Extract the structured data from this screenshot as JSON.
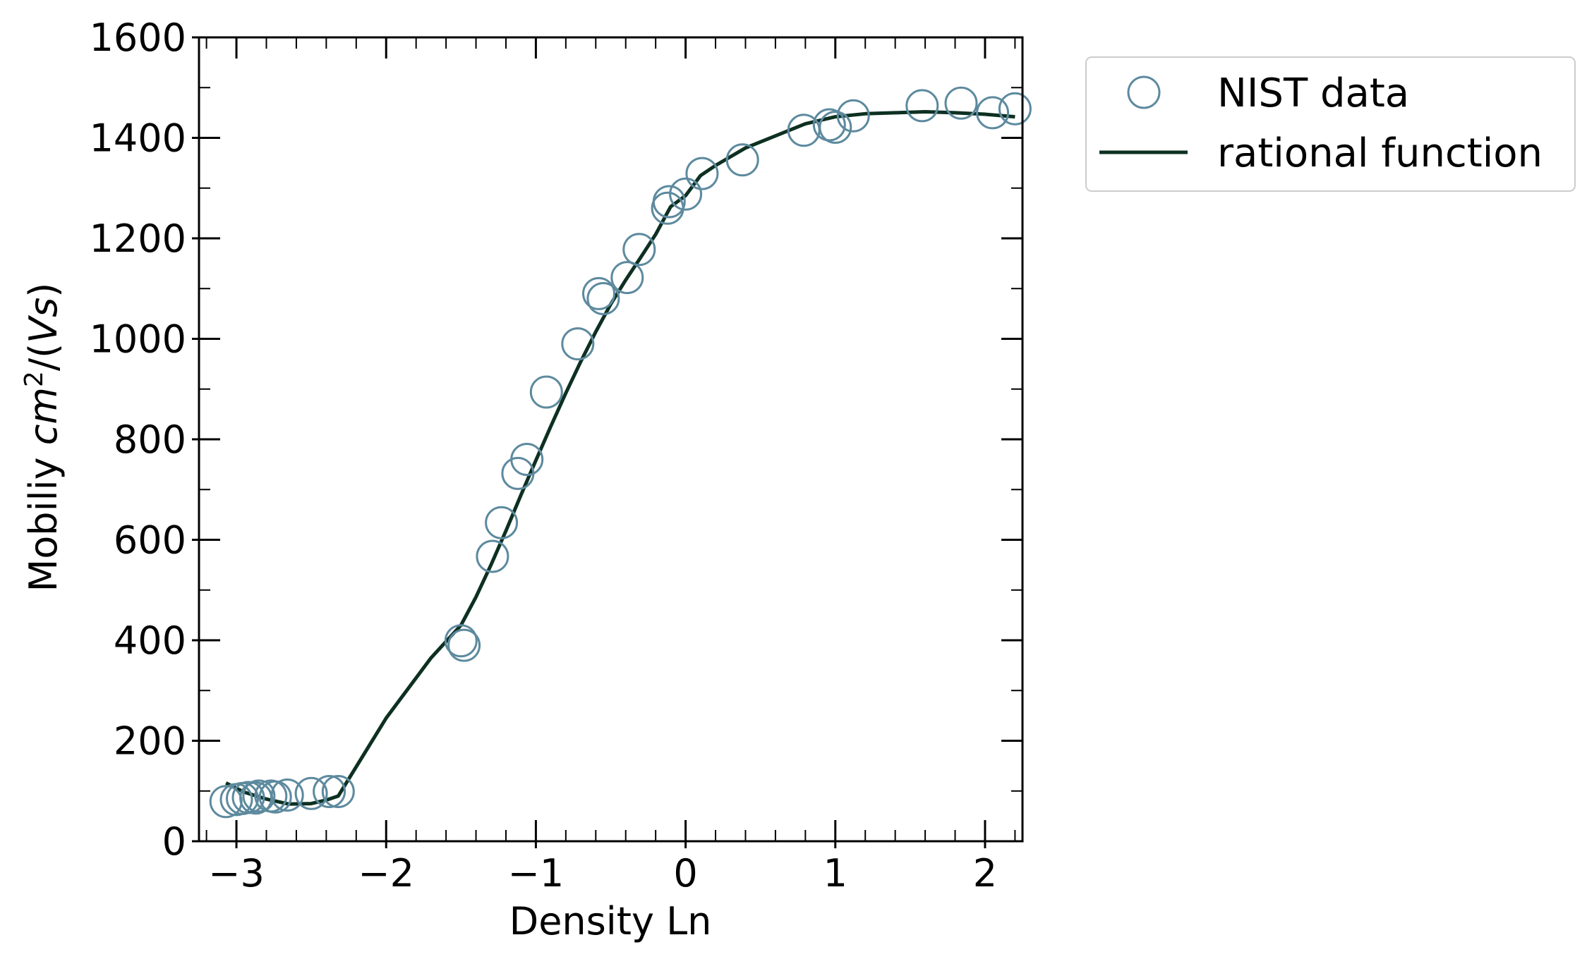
{
  "chart_data": {
    "type": "scatter",
    "xlabel": "Density Ln",
    "ylabel_prefix": "Mobiliy ",
    "ylabel_unit": "cm",
    "ylabel_exp": "2",
    "ylabel_suffix": "/(",
    "ylabel_italic": "Vs",
    "ylabel_close": ")",
    "xlim": [
      -3.25,
      2.25
    ],
    "ylim": [
      0,
      1600
    ],
    "xticks": [
      -3,
      -2,
      -1,
      0,
      1,
      2
    ],
    "xtick_labels": [
      "−3",
      "−2",
      "−1",
      "0",
      "1",
      "2"
    ],
    "xticks_minor_step": 0.2,
    "yticks": [
      0,
      200,
      400,
      600,
      800,
      1000,
      1200,
      1400,
      1600
    ],
    "ytick_labels": [
      "0",
      "200",
      "400",
      "600",
      "800",
      "1000",
      "1200",
      "1400",
      "1600"
    ],
    "yticks_minor_step": 100,
    "grid": false,
    "legend_position": "outside-top-right",
    "colors": {
      "marker_edge": "#5d8a9e",
      "line": "#0d3021",
      "axes": "#000000"
    },
    "series": [
      {
        "name": "NIST data",
        "kind": "markers",
        "x": [
          -3.07,
          -3.0,
          -2.96,
          -2.92,
          -2.87,
          -2.85,
          -2.77,
          -2.74,
          -2.66,
          -2.5,
          -2.38,
          -2.32,
          -1.5,
          -1.48,
          -1.29,
          -1.23,
          -1.12,
          -1.06,
          -0.93,
          -0.72,
          -0.58,
          -0.55,
          -0.39,
          -0.31,
          -0.12,
          -0.11,
          0.0,
          0.11,
          0.38,
          0.79,
          0.96,
          1.0,
          1.12,
          1.58,
          1.84,
          2.05,
          2.2
        ],
        "y": [
          79,
          83,
          85,
          87,
          86,
          90,
          90,
          88,
          92,
          95,
          99,
          99,
          399,
          390,
          567,
          634,
          732,
          760,
          894,
          990,
          1090,
          1080,
          1122,
          1178,
          1260,
          1273,
          1288,
          1329,
          1356,
          1415,
          1426,
          1421,
          1444,
          1464,
          1469,
          1450,
          1458
        ]
      },
      {
        "name": "rational function",
        "kind": "line",
        "x": [
          -3.07,
          -2.95,
          -2.8,
          -2.65,
          -2.5,
          -2.4,
          -2.32,
          -2.0,
          -1.7,
          -1.5,
          -1.4,
          -1.3,
          -1.2,
          -1.1,
          -1.0,
          -0.9,
          -0.8,
          -0.7,
          -0.6,
          -0.5,
          -0.4,
          -0.3,
          -0.2,
          -0.1,
          0.0,
          0.1,
          0.2,
          0.4,
          0.6,
          0.8,
          1.0,
          1.2,
          1.4,
          1.6,
          1.8,
          2.0,
          2.2
        ],
        "y": [
          116,
          98,
          84,
          74,
          75,
          82,
          90,
          245,
          365,
          430,
          486,
          550,
          618,
          689,
          758,
          826,
          892,
          955,
          1014,
          1069,
          1117,
          1162,
          1208,
          1263,
          1285,
          1325,
          1345,
          1380,
          1404,
          1428,
          1442,
          1448,
          1450,
          1452,
          1450,
          1447,
          1442
        ]
      }
    ]
  }
}
